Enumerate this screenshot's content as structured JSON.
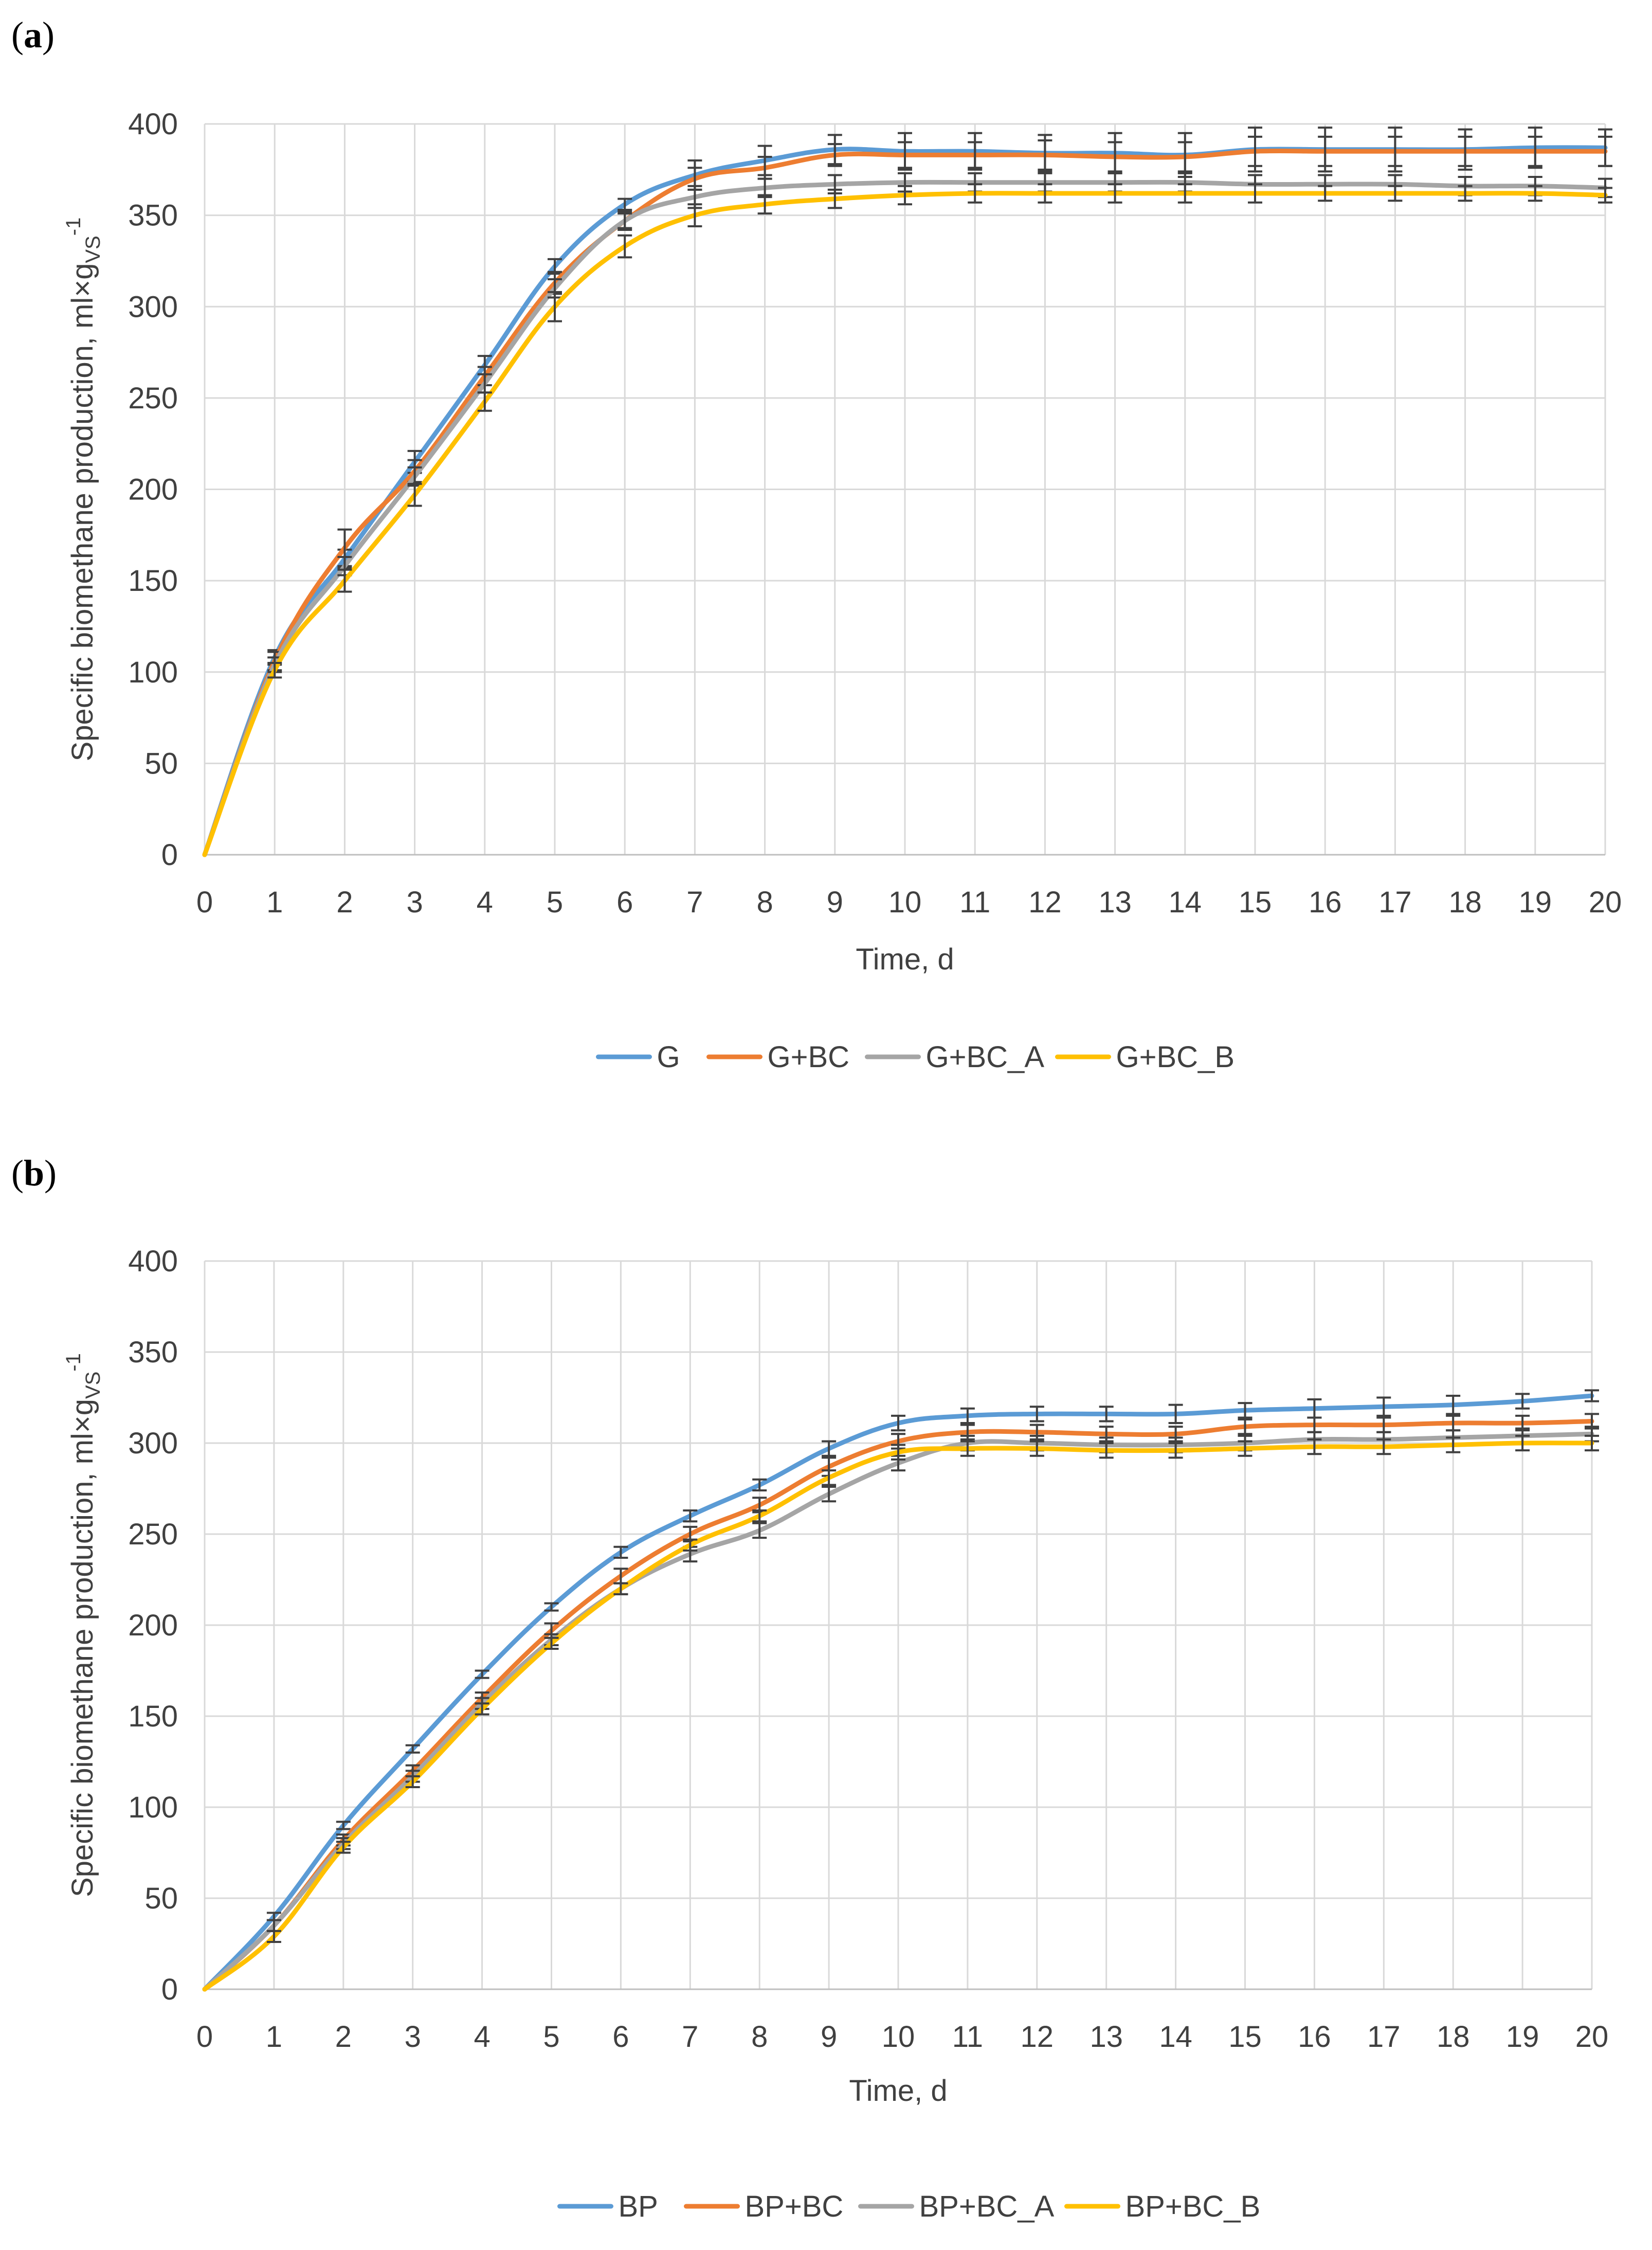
{
  "chart_data": [
    {
      "panel_label_open": "(",
      "panel_label_letter": "a",
      "panel_label_close": ")",
      "type": "line",
      "title": "",
      "xlabel": "Time, d",
      "ylabel_main": "Specific biomethane production, ml×g",
      "ylabel_sub": "VS",
      "ylabel_sup": "-1",
      "xlim": [
        0,
        20
      ],
      "ylim": [
        0,
        400
      ],
      "x_ticks": [
        0,
        1,
        2,
        3,
        4,
        5,
        6,
        7,
        8,
        9,
        10,
        11,
        12,
        13,
        14,
        15,
        16,
        17,
        18,
        19,
        20
      ],
      "y_ticks": [
        0,
        50,
        100,
        150,
        200,
        250,
        300,
        350,
        400
      ],
      "grid": true,
      "legend_position": "bottom",
      "x": [
        0,
        1,
        2,
        3,
        4,
        5,
        6,
        7,
        8,
        9,
        10,
        11,
        12,
        13,
        14,
        15,
        16,
        17,
        18,
        19,
        20
      ],
      "series": [
        {
          "name": "G",
          "color": "#5B9BD5",
          "values": [
            0,
            108,
            162,
            215,
            268,
            322,
            356,
            372,
            380,
            386,
            385,
            385,
            384,
            384,
            383,
            386,
            386,
            386,
            386,
            387,
            387
          ],
          "errors": [
            0,
            4,
            5,
            6,
            5,
            4,
            3,
            8,
            8,
            8,
            10,
            10,
            10,
            11,
            12,
            12,
            12,
            12,
            11,
            11,
            10
          ]
        },
        {
          "name": "G+BC",
          "color": "#ED7D31",
          "values": [
            0,
            106,
            168,
            210,
            262,
            313,
            347,
            370,
            376,
            383,
            383,
            383,
            383,
            382,
            382,
            385,
            385,
            385,
            385,
            385,
            385
          ],
          "errors": [
            0,
            5,
            10,
            6,
            5,
            6,
            5,
            6,
            6,
            6,
            7,
            7,
            8,
            8,
            8,
            8,
            8,
            8,
            8,
            8,
            8
          ]
        },
        {
          "name": "G+BC_A",
          "color": "#A5A5A5",
          "values": [
            0,
            104,
            158,
            207,
            258,
            310,
            347,
            360,
            365,
            367,
            368,
            368,
            368,
            368,
            368,
            367,
            367,
            367,
            366,
            366,
            365
          ],
          "errors": [
            0,
            4,
            5,
            5,
            5,
            5,
            4,
            6,
            5,
            5,
            5,
            5,
            5,
            5,
            5,
            5,
            5,
            5,
            5,
            5,
            5
          ]
        },
        {
          "name": "G+BC_B",
          "color": "#FFC000",
          "values": [
            0,
            101,
            150,
            197,
            248,
            300,
            333,
            350,
            356,
            359,
            361,
            362,
            362,
            362,
            362,
            362,
            362,
            362,
            362,
            362,
            361
          ],
          "errors": [
            0,
            4,
            6,
            6,
            5,
            8,
            6,
            6,
            5,
            5,
            5,
            5,
            5,
            5,
            5,
            5,
            4,
            4,
            4,
            4,
            4
          ]
        }
      ]
    },
    {
      "panel_label_open": "(",
      "panel_label_letter": "b",
      "panel_label_close": ")",
      "type": "line",
      "title": "",
      "xlabel": "Time, d",
      "ylabel_main": "Specific biomethane production, ml×g",
      "ylabel_sub": "VS",
      "ylabel_sup": "-1",
      "xlim": [
        0,
        20
      ],
      "ylim": [
        0,
        400
      ],
      "x_ticks": [
        0,
        1,
        2,
        3,
        4,
        5,
        6,
        7,
        8,
        9,
        10,
        11,
        12,
        13,
        14,
        15,
        16,
        17,
        18,
        19,
        20
      ],
      "y_ticks": [
        0,
        50,
        100,
        150,
        200,
        250,
        300,
        350,
        400
      ],
      "grid": true,
      "legend_position": "bottom",
      "x": [
        0,
        1,
        2,
        3,
        4,
        5,
        6,
        7,
        8,
        9,
        10,
        11,
        12,
        13,
        14,
        15,
        16,
        17,
        18,
        19,
        20
      ],
      "series": [
        {
          "name": "BP",
          "color": "#5B9BD5",
          "values": [
            0,
            40,
            90,
            132,
            173,
            210,
            240,
            260,
            277,
            297,
            311,
            315,
            316,
            316,
            316,
            318,
            319,
            320,
            321,
            323,
            326
          ],
          "errors": [
            0,
            2,
            2,
            2,
            2,
            2,
            3,
            3,
            3,
            4,
            4,
            4,
            4,
            4,
            5,
            4,
            5,
            5,
            5,
            4,
            3
          ]
        },
        {
          "name": "BP+BC",
          "color": "#ED7D31",
          "values": [
            0,
            35,
            82,
            120,
            160,
            197,
            227,
            250,
            266,
            287,
            301,
            306,
            306,
            305,
            305,
            309,
            310,
            310,
            311,
            311,
            312
          ],
          "errors": [
            0,
            3,
            3,
            3,
            3,
            4,
            4,
            4,
            4,
            5,
            4,
            4,
            4,
            4,
            4,
            4,
            4,
            4,
            4,
            4,
            4
          ]
        },
        {
          "name": "BP+BC_A",
          "color": "#A5A5A5",
          "values": [
            0,
            35,
            80,
            117,
            157,
            192,
            220,
            239,
            252,
            272,
            289,
            300,
            300,
            299,
            299,
            300,
            302,
            302,
            303,
            304,
            305
          ],
          "errors": [
            0,
            3,
            3,
            3,
            3,
            3,
            3,
            4,
            4,
            4,
            4,
            4,
            4,
            4,
            4,
            4,
            4,
            4,
            4,
            4,
            4
          ]
        },
        {
          "name": "BP+BC_B",
          "color": "#FFC000",
          "values": [
            0,
            29,
            78,
            114,
            154,
            190,
            220,
            244,
            260,
            281,
            295,
            297,
            297,
            296,
            296,
            297,
            298,
            298,
            299,
            300,
            300
          ],
          "errors": [
            0,
            3,
            3,
            3,
            3,
            3,
            3,
            3,
            3,
            4,
            4,
            4,
            4,
            4,
            4,
            4,
            4,
            4,
            4,
            4,
            4
          ]
        }
      ]
    }
  ]
}
